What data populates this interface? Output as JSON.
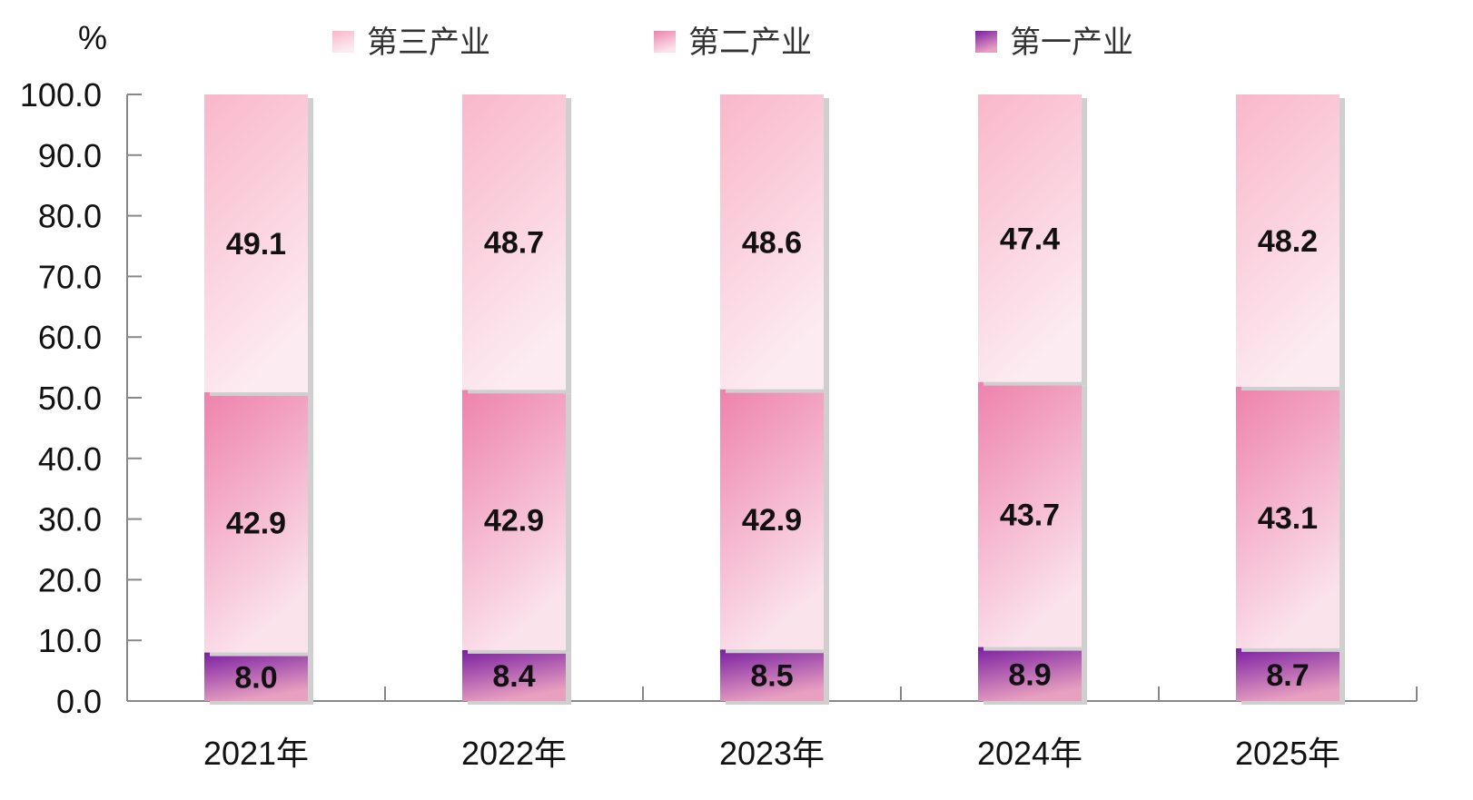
{
  "chart_data": {
    "type": "bar",
    "stacked": true,
    "y_unit_label": "%",
    "ylim": [
      0,
      100
    ],
    "y_ticks": [
      "0.0",
      "10.0",
      "20.0",
      "30.0",
      "40.0",
      "50.0",
      "60.0",
      "70.0",
      "80.0",
      "90.0",
      "100.0"
    ],
    "categories": [
      "2021年",
      "2022年",
      "2023年",
      "2024年",
      "2025年"
    ],
    "series": [
      {
        "name": "第一产业",
        "values": [
          8.0,
          8.4,
          8.5,
          8.9,
          8.7
        ],
        "labels": [
          "8.0",
          "8.4",
          "8.5",
          "8.9",
          "8.7"
        ],
        "color_top": "#7a1fa2",
        "color_bottom": "#e8a0c0"
      },
      {
        "name": "第二产业",
        "values": [
          42.9,
          42.9,
          42.9,
          43.7,
          43.1
        ],
        "labels": [
          "42.9",
          "42.9",
          "42.9",
          "43.7",
          "43.1"
        ],
        "color_top": "#ee82ac",
        "color_bottom": "#fbe3ec"
      },
      {
        "name": "第三产业",
        "values": [
          49.1,
          48.7,
          48.6,
          47.4,
          48.2
        ],
        "labels": [
          "49.1",
          "48.7",
          "48.6",
          "47.4",
          "48.2"
        ],
        "color_top": "#f9b7cb",
        "color_bottom": "#fcebf1"
      }
    ],
    "legend_order": [
      "第三产业",
      "第二产业",
      "第一产业"
    ],
    "legend_position": "top",
    "grid": false
  }
}
